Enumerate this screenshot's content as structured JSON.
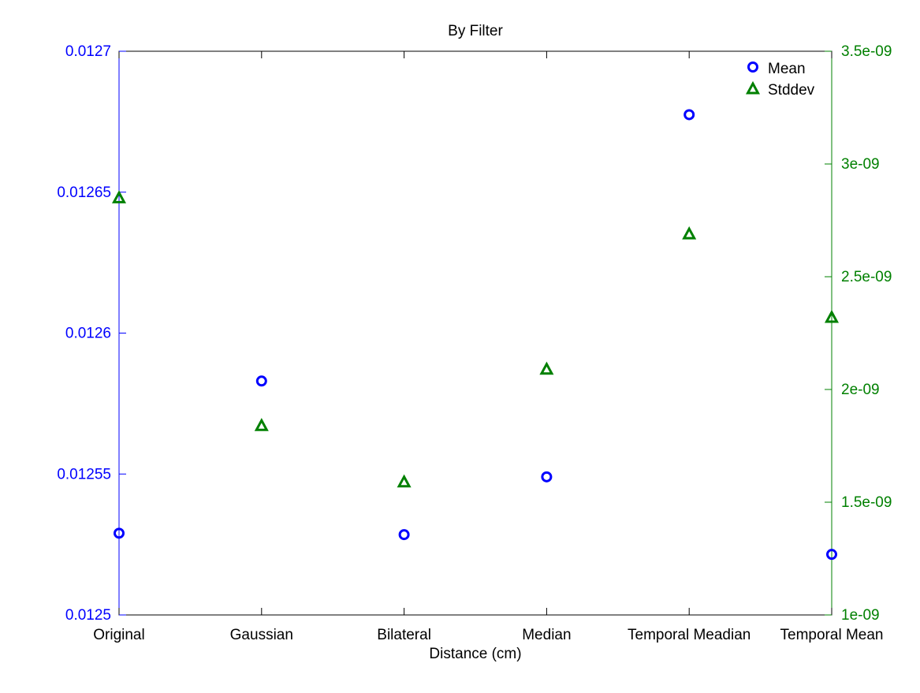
{
  "chart_data": {
    "type": "scatter",
    "title": "By Filter",
    "xlabel": "Distance (cm)",
    "categories": [
      "Original",
      "Gaussian",
      "Bilateral",
      "Median",
      "Temporal Meadian",
      "Temporal Mean"
    ],
    "left_axis": {
      "ylim": [
        0.0125,
        0.0127
      ],
      "ticks": [
        0.0125,
        0.01255,
        0.0126,
        0.01265,
        0.0127
      ],
      "tick_labels": [
        "0.0125",
        "0.01255",
        "0.0126",
        "0.01265",
        "0.0127"
      ],
      "color": "#0000ff"
    },
    "right_axis": {
      "ylim": [
        1e-09,
        3.5e-09
      ],
      "ticks": [
        1e-09,
        1.5e-09,
        2e-09,
        2.5e-09,
        3e-09,
        3.5e-09
      ],
      "tick_labels": [
        "1e-09",
        "1.5e-09",
        "2e-09",
        "2.5e-09",
        "3e-09",
        "3.5e-09"
      ],
      "color": "#008000"
    },
    "series": [
      {
        "name": "Mean",
        "axis": "left",
        "marker": "circle",
        "color": "#0000ff",
        "values": [
          0.012529,
          0.012583,
          0.0125285,
          0.012549,
          0.0126775,
          0.0125215
        ]
      },
      {
        "name": "Stddev",
        "axis": "right",
        "marker": "triangle",
        "color": "#008000",
        "values": [
          2.85e-09,
          1.84e-09,
          1.59e-09,
          2.09e-09,
          2.69e-09,
          2.32e-09
        ]
      }
    ],
    "legend": "top-right",
    "grid": false
  }
}
